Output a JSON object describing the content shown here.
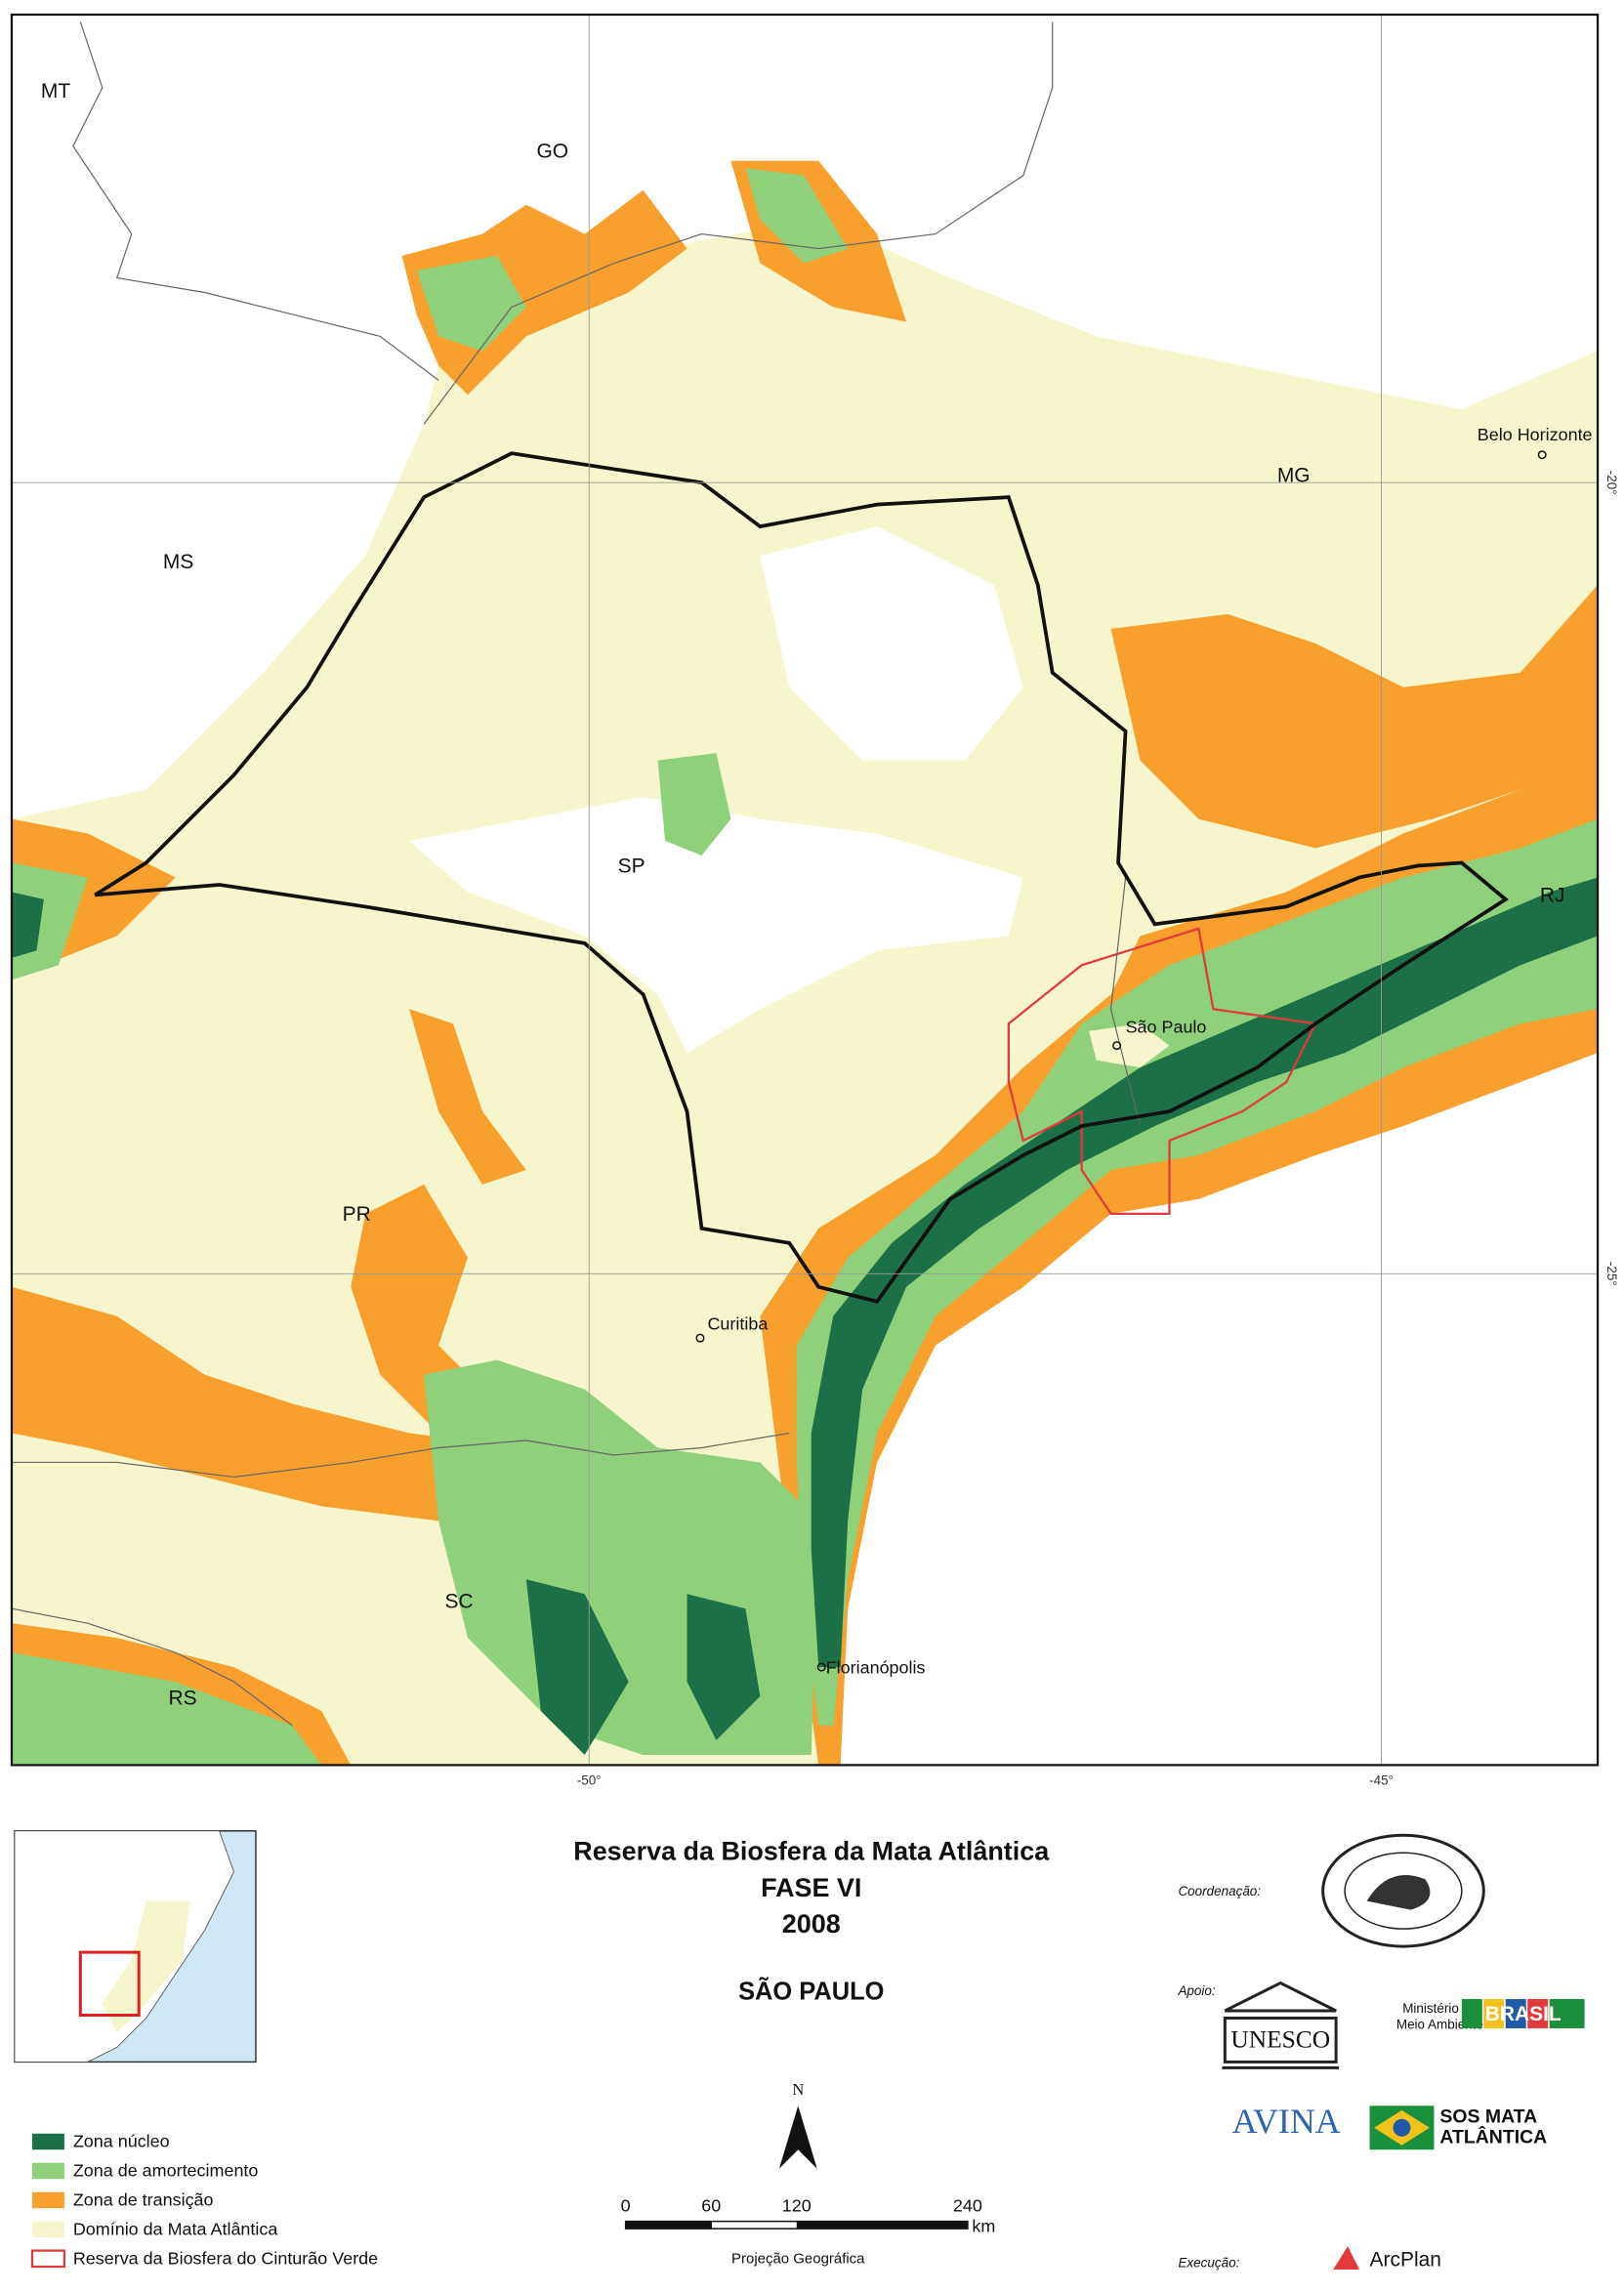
{
  "map": {
    "states": [
      "MT",
      "GO",
      "MS",
      "MG",
      "SP",
      "RJ",
      "PR",
      "SC",
      "RS"
    ],
    "cities": [
      "Belo Horizonte",
      "São Paulo",
      "Curitiba",
      "Florianópolis"
    ],
    "longitude_labels": [
      "-50°",
      "-45°"
    ],
    "latitude_labels": [
      "-20°",
      "-25°"
    ]
  },
  "header": {
    "title": "Reserva da Biosfera da Mata Atlântica",
    "phase": "FASE VI",
    "year": "2008",
    "region": "SÃO PAULO"
  },
  "legend": {
    "items": [
      "Zona núcleo",
      "Zona de amortecimento",
      "Zona de transição",
      "Domínio da Mata Atlântica",
      "Reserva da Biosfera do Cinturão Verde"
    ]
  },
  "scale_bar": {
    "ticks": [
      0,
      60,
      120,
      240
    ],
    "unit": "km",
    "north": "N",
    "projection": "Projeção Geográfica"
  },
  "credits": {
    "coordination": "Coordenação:",
    "support": "Apoio:",
    "execution": "Execução:",
    "unesco": "UNESCO",
    "ministry": [
      "Ministério do",
      "Meio Ambiente"
    ],
    "brasil": "BRASIL",
    "avina": "AVINA",
    "sos": [
      "SOS MATA",
      "ATLÂNTICA"
    ],
    "arcplan": "ArcPlan"
  }
}
